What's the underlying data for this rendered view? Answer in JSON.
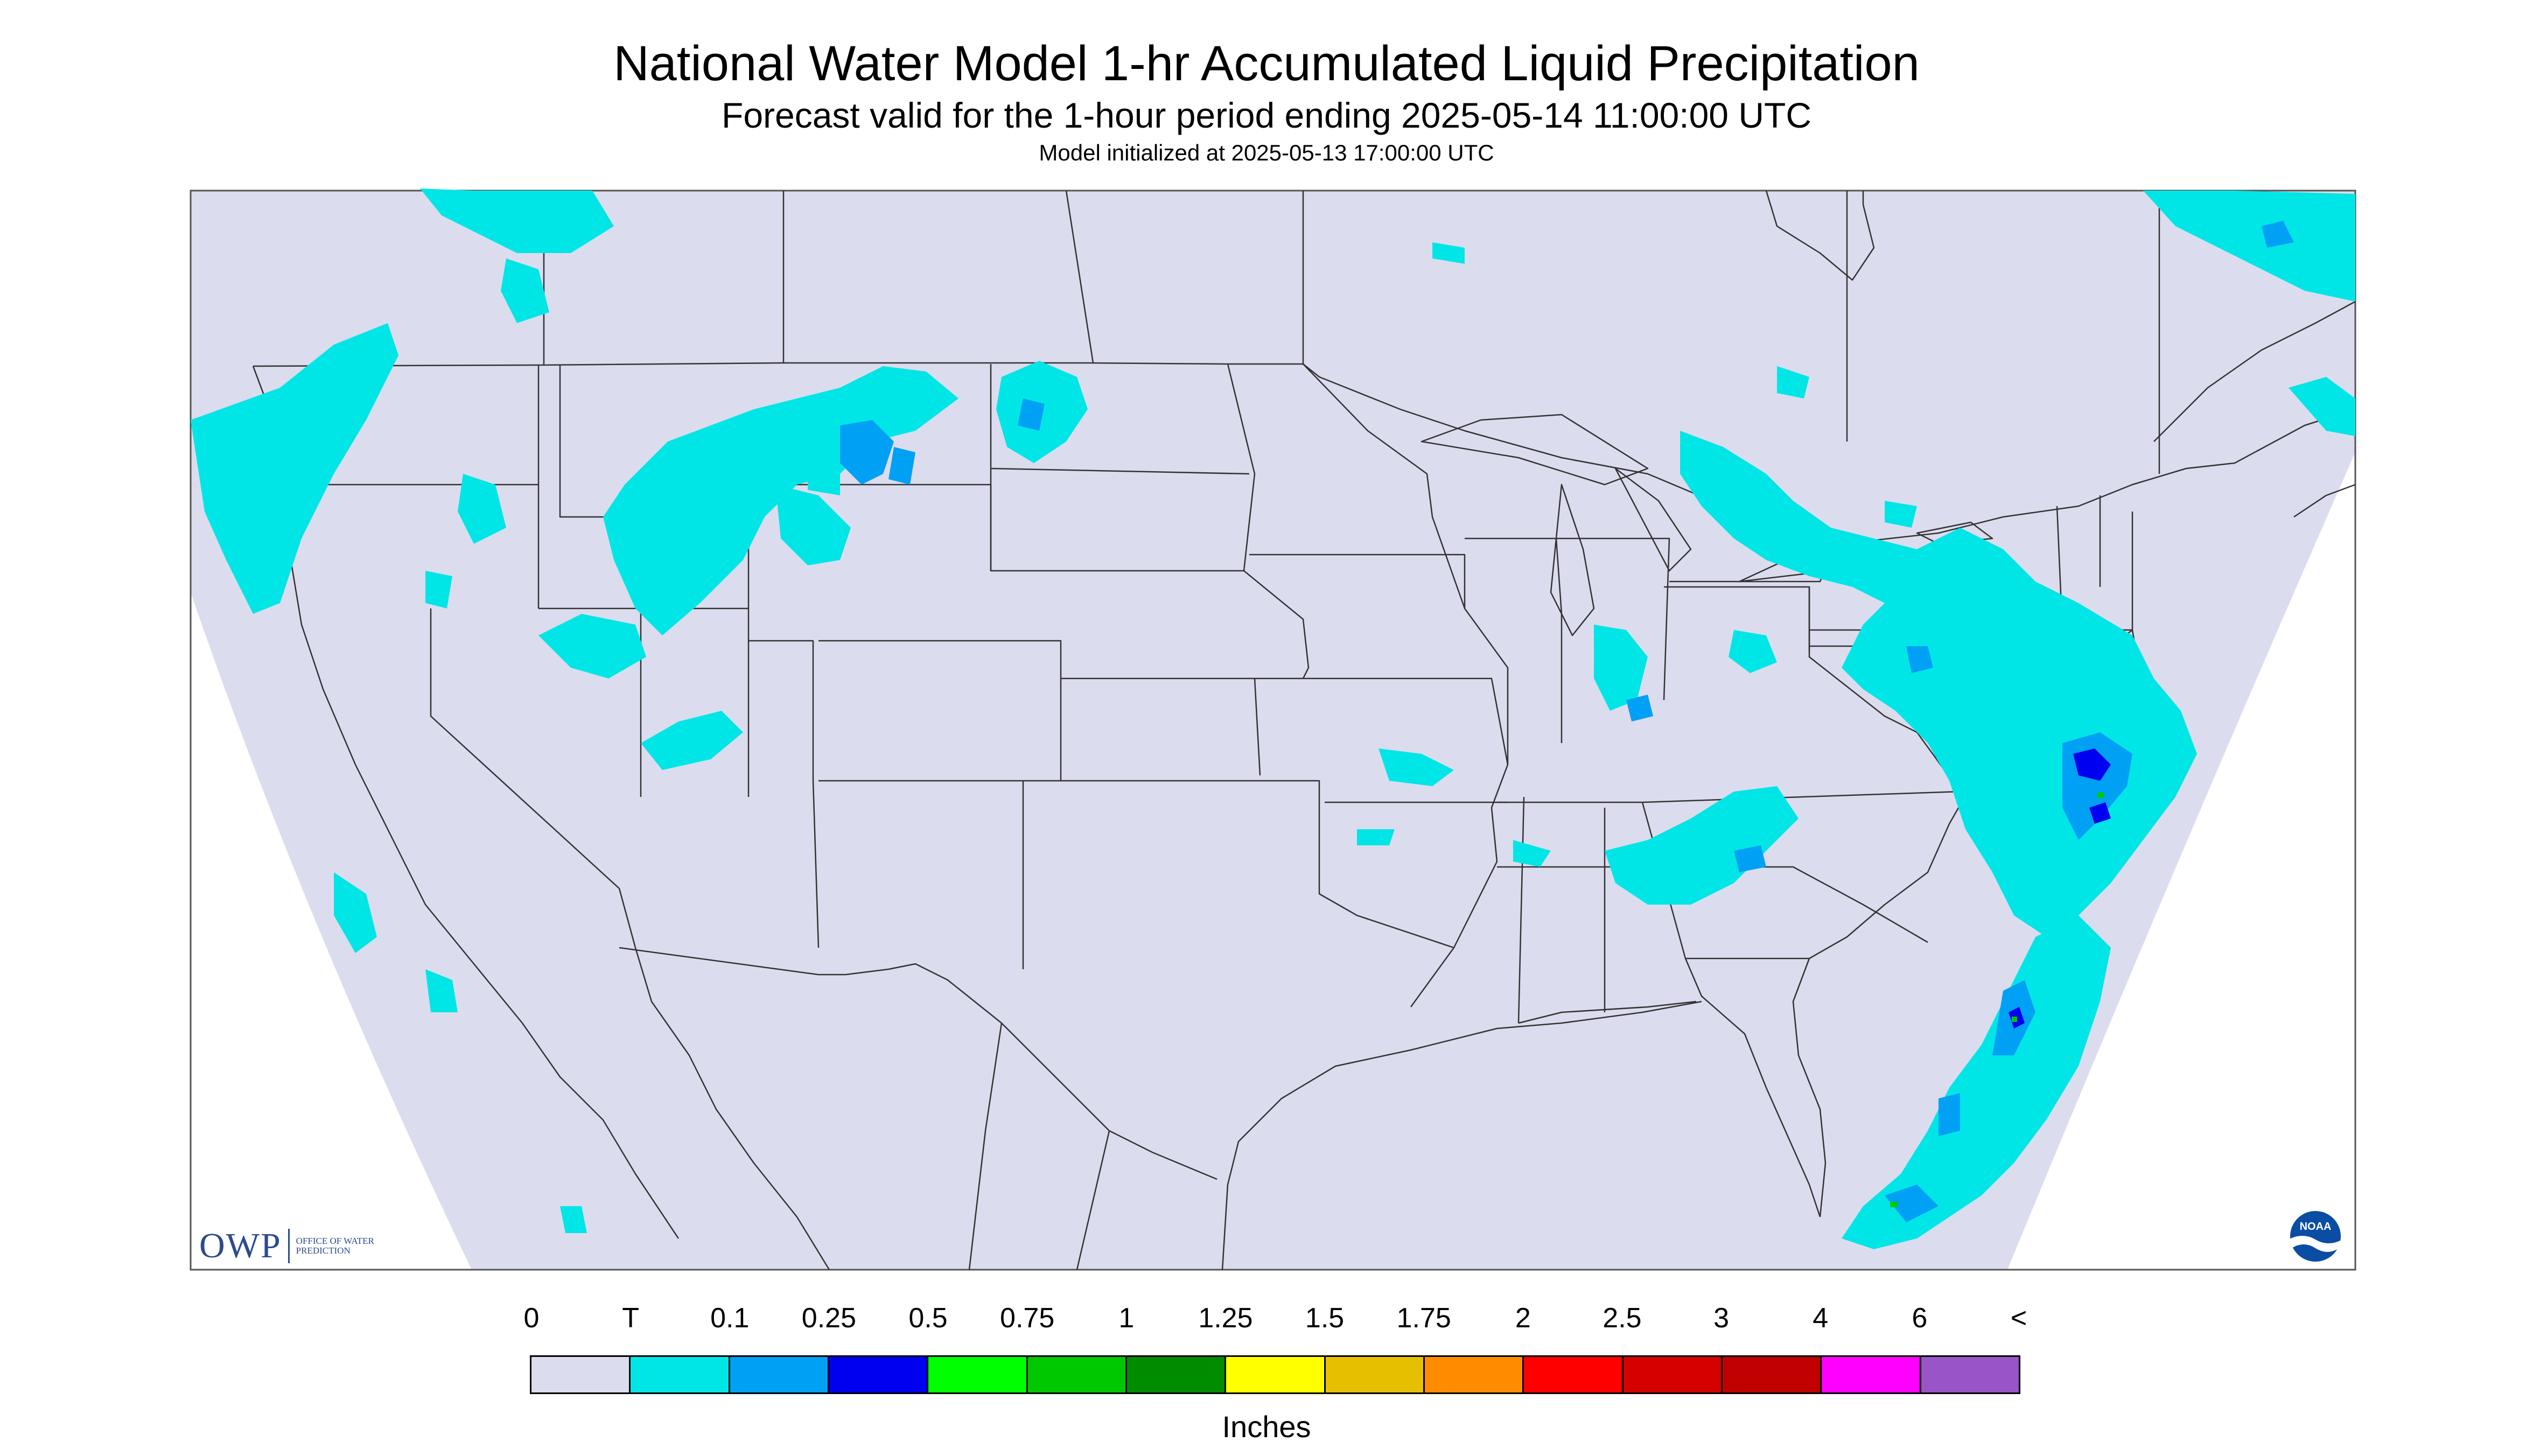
{
  "header": {
    "title": "National Water Model 1-hr Accumulated Liquid Precipitation",
    "subtitle": "Forecast valid for the 1-hour period ending 2025-05-14 11:00:00 UTC",
    "init": "Model initialized at 2025-05-13 17:00:00 UTC"
  },
  "colors": {
    "background": "#dcdcef",
    "frame": "#555555",
    "borders": "#333333",
    "trace": "#00e6e6",
    "light_blue": "#00a0f5",
    "blue": "#0000f0",
    "green": "#00c800"
  },
  "legend": {
    "ticks": [
      "0",
      "T",
      "0.1",
      "0.25",
      "0.5",
      "0.75",
      "1",
      "1.25",
      "1.5",
      "1.75",
      "2",
      "2.5",
      "3",
      "4",
      "6",
      "<"
    ],
    "colors": [
      "#dcdcef",
      "#00e6e6",
      "#00a0f5",
      "#0000f0",
      "#00ff00",
      "#00c800",
      "#008c00",
      "#ffff00",
      "#e6c000",
      "#ff8c00",
      "#ff0000",
      "#d70000",
      "#c00000",
      "#ff00ff",
      "#9955c8"
    ],
    "units": "Inches"
  },
  "logos": {
    "owp_big": "OWP",
    "owp_small": "OFFICE OF WATER PREDICTION",
    "noaa": "NOAA"
  }
}
